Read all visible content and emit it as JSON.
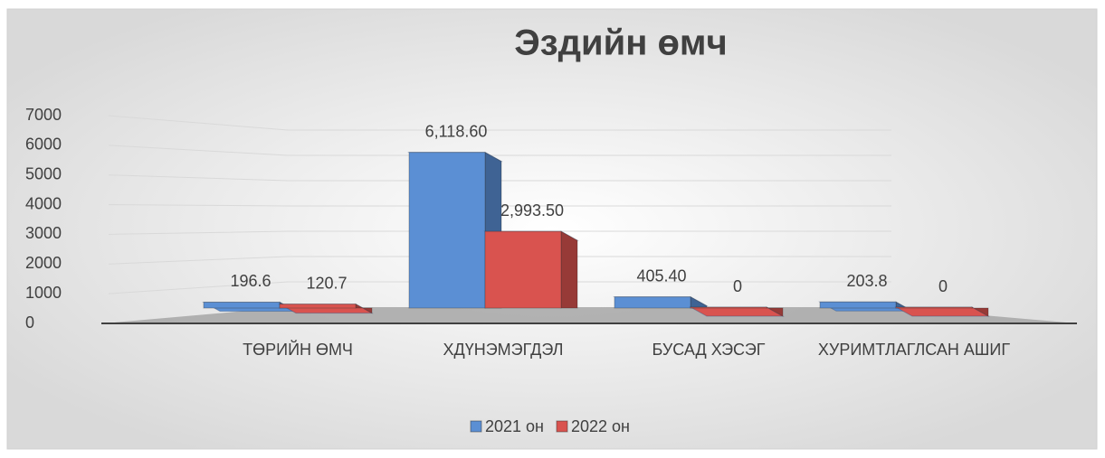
{
  "chart_data": {
    "type": "bar3d",
    "title": "Эздийн өмч",
    "categories": [
      "ТӨРИЙН ӨМЧ",
      "ХДҮНЭМЭГДЭЛ",
      "БУСАД ХЭСЭГ",
      "ХУРИМТЛАГЛСАН АШИГ"
    ],
    "series": [
      {
        "name": "2021 он",
        "color": "#5b8fd4",
        "values": [
          196.6,
          6118.6,
          405.4,
          203.8
        ],
        "value_labels": [
          "196.6",
          "6,118.60",
          "405.40",
          "203.8"
        ]
      },
      {
        "name": "2022 он",
        "color": "#d9534f",
        "values": [
          120.7,
          2993.5,
          0,
          0
        ],
        "value_labels": [
          "120.7",
          "2,993.50",
          "0",
          "0"
        ]
      }
    ],
    "ylim": [
      0,
      7000
    ],
    "yticks": [
      0,
      1000,
      2000,
      3000,
      4000,
      5000,
      6000,
      7000
    ],
    "grid": true,
    "legend": "bottom"
  }
}
